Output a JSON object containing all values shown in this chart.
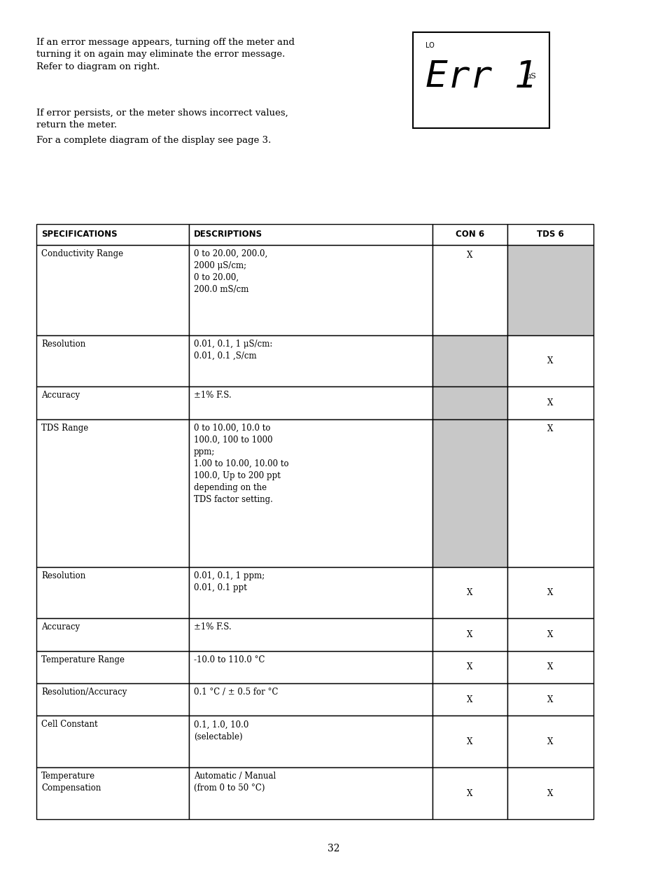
{
  "page_bg": "#ffffff",
  "text_color": "#000000",
  "page_number": "32",
  "intro_paragraphs": [
    "If an error message appears, turning off the meter and\nturning it on again may eliminate the error message.\nRefer to diagram on right.",
    "If error persists, or the meter shows incorrect values,\nreturn the meter.",
    "For a complete diagram of the display see page 3."
  ],
  "display_box": {
    "label_lo": "LO",
    "label_main": "Err 1",
    "label_unit": "μS"
  },
  "table_headers": [
    "SPECIFICATIONS",
    "DESCRIPTIONS",
    "CON 6",
    "TDS 6"
  ],
  "table_rows": [
    {
      "spec": "Conductivity Range",
      "desc": "0 to 20.00, 200.0,\n2000 μS/cm;\n0 to 20.00,\n200.0 mS/cm",
      "con6": "X",
      "tds6": "",
      "con6_gray": false,
      "tds6_gray": true,
      "x_valign": "top"
    },
    {
      "spec": "Resolution",
      "desc": "0.01, 0.1, 1 μS/cm:\n0.01, 0.1 ,S/cm",
      "con6": "",
      "tds6": "X",
      "con6_gray": true,
      "tds6_gray": false,
      "x_valign": "center"
    },
    {
      "spec": "Accuracy",
      "desc": "±1% F.S.",
      "con6": "",
      "tds6": "X",
      "con6_gray": true,
      "tds6_gray": false,
      "x_valign": "center"
    },
    {
      "spec": "TDS Range",
      "desc": "0 to 10.00, 10.0 to\n100.0, 100 to 1000\nppm;\n1.00 to 10.00, 10.00 to\n100.0, Up to 200 ppt\ndepending on the\nTDS factor setting.",
      "con6": "",
      "tds6": "X",
      "con6_gray": true,
      "tds6_gray": false,
      "x_valign": "top"
    },
    {
      "spec": "Resolution",
      "desc": "0.01, 0.1, 1 ppm;\n0.01, 0.1 ppt",
      "con6": "X",
      "tds6": "X",
      "con6_gray": false,
      "tds6_gray": false,
      "x_valign": "center"
    },
    {
      "spec": "Accuracy",
      "desc": "±1% F.S.",
      "con6": "X",
      "tds6": "X",
      "con6_gray": false,
      "tds6_gray": false,
      "x_valign": "center"
    },
    {
      "spec": "Temperature Range",
      "desc": "-10.0 to 110.0 °C",
      "con6": "X",
      "tds6": "X",
      "con6_gray": false,
      "tds6_gray": false,
      "x_valign": "center"
    },
    {
      "spec": "Resolution/Accuracy",
      "desc": "0.1 °C / ± 0.5 for °C",
      "con6": "X",
      "tds6": "X",
      "con6_gray": false,
      "tds6_gray": false,
      "x_valign": "center"
    },
    {
      "spec": "Cell Constant",
      "desc": "0.1, 1.0, 10.0\n(selectable)",
      "con6": "X",
      "tds6": "X",
      "con6_gray": false,
      "tds6_gray": false,
      "x_valign": "center"
    },
    {
      "spec": "Temperature\nCompensation",
      "desc": "Automatic / Manual\n(from 0 to 50 °C)",
      "con6": "X",
      "tds6": "X",
      "con6_gray": false,
      "tds6_gray": false,
      "x_valign": "center"
    }
  ],
  "gray_color": "#c8c8c8",
  "table_border_color": "#000000",
  "header_font_size": 8.5,
  "body_font_size": 8.5,
  "intro_font_size": 9.5
}
